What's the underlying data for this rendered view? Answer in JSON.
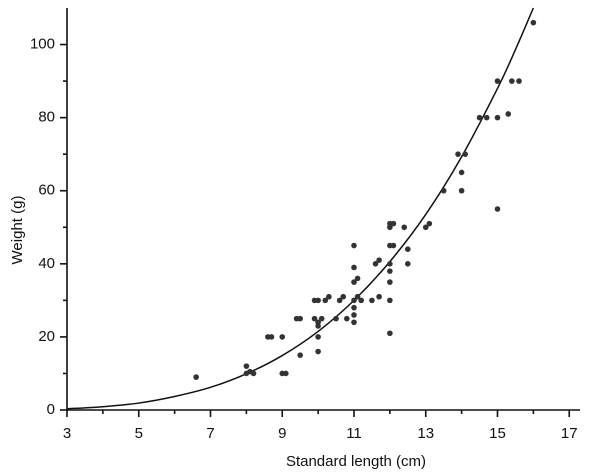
{
  "chart_data": {
    "type": "scatter",
    "xlabel": "Standard length (cm)",
    "ylabel": "Weight (g)",
    "xlim": [
      3,
      17.3
    ],
    "ylim": [
      0,
      110
    ],
    "xticks": [
      3,
      5,
      7,
      9,
      11,
      13,
      15,
      17
    ],
    "xminor": [
      4,
      6,
      8,
      10,
      12,
      14,
      16
    ],
    "yticks": [
      0,
      20,
      40,
      60,
      80,
      100
    ],
    "yminor": [
      10,
      30,
      50,
      70,
      90
    ],
    "color": "#333333",
    "x": [
      6.6,
      8,
      8,
      8.1,
      8.2,
      8.6,
      8.7,
      9,
      9,
      9.1,
      9.4,
      9.5,
      9.5,
      9.9,
      9.9,
      10,
      10,
      10,
      10,
      10,
      10.1,
      10.2,
      10.3,
      10.5,
      10.6,
      10.7,
      10.8,
      11,
      11,
      11,
      11,
      11,
      11,
      11,
      11.1,
      11.1,
      11.2,
      11.5,
      11.6,
      11.7,
      11.7,
      12,
      12,
      12,
      12,
      12,
      12,
      12,
      12,
      12.1,
      12.1,
      12.4,
      12.5,
      12.5,
      13,
      13.1,
      13.5,
      13.9,
      14,
      14,
      14.1,
      14.5,
      14.7,
      15,
      15,
      15,
      15.3,
      15.4,
      15.6,
      16
    ],
    "y": [
      9,
      12,
      10,
      10.5,
      10,
      20,
      20,
      20,
      10,
      10,
      25,
      25,
      15,
      25,
      30,
      24,
      30,
      23,
      20,
      16,
      25,
      30,
      31,
      25,
      30,
      31,
      25,
      45,
      39,
      35,
      30,
      28,
      26,
      24,
      31,
      36,
      30,
      30,
      40,
      41,
      31,
      50,
      51,
      45,
      40,
      38,
      35,
      30,
      21,
      45,
      51,
      50,
      40,
      44,
      50,
      51,
      60,
      70,
      60,
      65,
      70,
      80,
      80,
      90,
      80,
      55,
      81,
      90,
      90,
      106
    ],
    "curve": {
      "x": [
        3,
        4,
        5,
        6,
        7,
        8,
        9,
        10,
        11,
        12,
        13,
        14,
        15,
        15.5,
        16
      ],
      "y": [
        0.33,
        0.9,
        1.9,
        3.7,
        6.2,
        9.9,
        14.9,
        21.5,
        30,
        40.6,
        53.5,
        69.3,
        88,
        98.6,
        110
      ]
    }
  }
}
